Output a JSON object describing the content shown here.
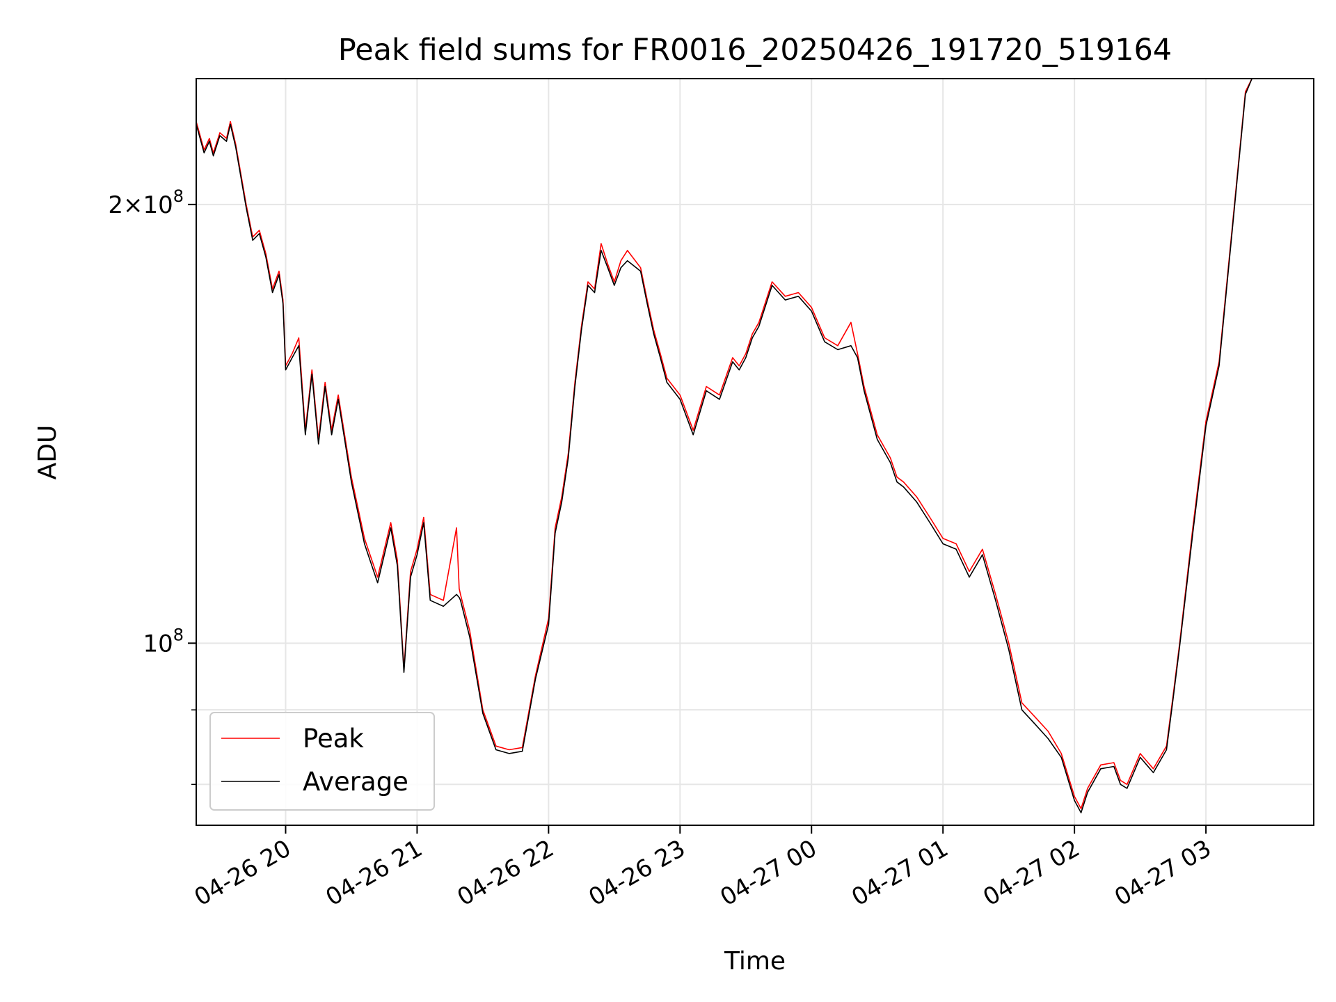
{
  "chart_data": {
    "type": "line",
    "title": "Peak field sums for FR0016_20250426_191720_519164",
    "xlabel": "Time",
    "ylabel": "ADU",
    "yscale": "log",
    "ylim": [
      75000000,
      244000000
    ],
    "x_tick_labels": [
      "04-26 20",
      "04-26 21",
      "04-26 22",
      "04-26 23",
      "04-27 00",
      "04-27 01",
      "04-27 02",
      "04-27 03"
    ],
    "y_tick_labels": [
      {
        "value": 200000000,
        "base": "2×10",
        "exp": "8"
      },
      {
        "value": 100000000,
        "base": "10",
        "exp": "8"
      }
    ],
    "y_minor_ticks": [
      80000000,
      90000000
    ],
    "grid": true,
    "legend_position": "lower left",
    "x_unit": "hours since 04-26 20:00",
    "xlim": [
      -0.68,
      7.82
    ],
    "series": [
      {
        "name": "Peak",
        "color": "#ff0000",
        "x": [
          -0.68,
          -0.62,
          -0.58,
          -0.55,
          -0.5,
          -0.45,
          -0.42,
          -0.38,
          -0.3,
          -0.25,
          -0.2,
          -0.15,
          -0.1,
          -0.05,
          -0.02,
          0.0,
          0.05,
          0.1,
          0.15,
          0.2,
          0.25,
          0.3,
          0.35,
          0.4,
          0.5,
          0.6,
          0.7,
          0.8,
          0.85,
          0.9,
          0.95,
          1.0,
          1.05,
          1.1,
          1.2,
          1.3,
          1.32,
          1.33,
          1.4,
          1.5,
          1.6,
          1.7,
          1.8,
          1.9,
          2.0,
          2.05,
          2.1,
          2.15,
          2.2,
          2.25,
          2.3,
          2.35,
          2.4,
          2.45,
          2.5,
          2.55,
          2.6,
          2.7,
          2.75,
          2.8,
          2.85,
          2.9,
          3.0,
          3.1,
          3.2,
          3.3,
          3.4,
          3.45,
          3.5,
          3.55,
          3.6,
          3.7,
          3.8,
          3.9,
          4.0,
          4.1,
          4.2,
          4.3,
          4.35,
          4.4,
          4.5,
          4.6,
          4.65,
          4.7,
          4.8,
          4.9,
          5.0,
          5.1,
          5.2,
          5.3,
          5.4,
          5.5,
          5.6,
          5.7,
          5.8,
          5.9,
          6.0,
          6.05,
          6.1,
          6.2,
          6.3,
          6.35,
          6.4,
          6.5,
          6.6,
          6.7,
          6.75,
          6.8,
          6.9,
          7.0,
          7.1,
          7.2,
          7.3,
          7.35,
          7.4,
          7.45,
          7.5,
          7.55,
          7.6
        ],
        "y": [
          228000000,
          218000000,
          222000000,
          217000000,
          224000000,
          222000000,
          228000000,
          220000000,
          200000000,
          190000000,
          192000000,
          185000000,
          175000000,
          180000000,
          172000000,
          155000000,
          158000000,
          162000000,
          140000000,
          154000000,
          138000000,
          151000000,
          140000000,
          148000000,
          130000000,
          118000000,
          111000000,
          121000000,
          114000000,
          96000000,
          112000000,
          116000000,
          122000000,
          108000000,
          107000000,
          120000000,
          109000000,
          108000000,
          102000000,
          90000000,
          85000000,
          84500000,
          84800000,
          95000000,
          104000000,
          120000000,
          126000000,
          135000000,
          151000000,
          165000000,
          177000000,
          175000000,
          188000000,
          182000000,
          177000000,
          183000000,
          186000000,
          181000000,
          172000000,
          164000000,
          158000000,
          152000000,
          148000000,
          140000000,
          150000000,
          148000000,
          157000000,
          155000000,
          158000000,
          163000000,
          166000000,
          177000000,
          173000000,
          174000000,
          170000000,
          162000000,
          160000000,
          166000000,
          158000000,
          150000000,
          139000000,
          134000000,
          130000000,
          129000000,
          126000000,
          122000000,
          118000000,
          117000000,
          112000000,
          116000000,
          108000000,
          100000000,
          91000000,
          89000000,
          87000000,
          84000000,
          78500000,
          77000000,
          79500000,
          82500000,
          82800000,
          80500000,
          80000000,
          84000000,
          82000000,
          85000000,
          92000000,
          100000000,
          120000000,
          142000000,
          156000000,
          193000000,
          239000000,
          244000000,
          244000000,
          244000000,
          244000000,
          244000000,
          244000000
        ]
      },
      {
        "name": "Average",
        "color": "#000000",
        "x": [
          -0.68,
          -0.62,
          -0.58,
          -0.55,
          -0.5,
          -0.45,
          -0.42,
          -0.38,
          -0.3,
          -0.25,
          -0.2,
          -0.15,
          -0.1,
          -0.05,
          -0.02,
          0.0,
          0.05,
          0.1,
          0.15,
          0.2,
          0.25,
          0.3,
          0.35,
          0.4,
          0.5,
          0.6,
          0.7,
          0.8,
          0.85,
          0.9,
          0.95,
          1.0,
          1.05,
          1.1,
          1.2,
          1.3,
          1.32,
          1.33,
          1.4,
          1.5,
          1.6,
          1.7,
          1.8,
          1.9,
          2.0,
          2.05,
          2.1,
          2.15,
          2.2,
          2.25,
          2.3,
          2.35,
          2.4,
          2.45,
          2.5,
          2.55,
          2.6,
          2.7,
          2.75,
          2.8,
          2.85,
          2.9,
          3.0,
          3.1,
          3.2,
          3.3,
          3.4,
          3.45,
          3.5,
          3.55,
          3.6,
          3.7,
          3.8,
          3.9,
          4.0,
          4.1,
          4.2,
          4.3,
          4.35,
          4.4,
          4.5,
          4.6,
          4.65,
          4.7,
          4.8,
          4.9,
          5.0,
          5.1,
          5.2,
          5.3,
          5.4,
          5.5,
          5.6,
          5.7,
          5.8,
          5.9,
          6.0,
          6.05,
          6.1,
          6.2,
          6.3,
          6.35,
          6.4,
          6.5,
          6.6,
          6.7,
          6.75,
          6.8,
          6.9,
          7.0,
          7.1,
          7.2,
          7.3,
          7.35,
          7.4,
          7.45,
          7.5,
          7.55,
          7.6
        ],
        "y": [
          227000000,
          217000000,
          221000000,
          216000000,
          223000000,
          221000000,
          227000000,
          219000000,
          199000000,
          189000000,
          191000000,
          184000000,
          174000000,
          179000000,
          171000000,
          154000000,
          157000000,
          160000000,
          139000000,
          153000000,
          137000000,
          150000000,
          139000000,
          147000000,
          129000000,
          117000000,
          110000000,
          120000000,
          113000000,
          95500000,
          111000000,
          115000000,
          121000000,
          107000000,
          106000000,
          108000000,
          107500000,
          107000000,
          101000000,
          89500000,
          84500000,
          84000000,
          84300000,
          94500000,
          103000000,
          119000000,
          125000000,
          134000000,
          150000000,
          164000000,
          176000000,
          174000000,
          186000000,
          181000000,
          176000000,
          181000000,
          183000000,
          180000000,
          171000000,
          163000000,
          157000000,
          151000000,
          147000000,
          139000000,
          149000000,
          147000000,
          156000000,
          154000000,
          157000000,
          162000000,
          165000000,
          176000000,
          172000000,
          173000000,
          169000000,
          161000000,
          159000000,
          160000000,
          157000000,
          149000000,
          138000000,
          133000000,
          129000000,
          128000000,
          125000000,
          121000000,
          117000000,
          116000000,
          111000000,
          115000000,
          107000000,
          99000000,
          90000000,
          88000000,
          86000000,
          83500000,
          78000000,
          76500000,
          79000000,
          82000000,
          82300000,
          80000000,
          79500000,
          83500000,
          81500000,
          84500000,
          91500000,
          99500000,
          119000000,
          141000000,
          155000000,
          192000000,
          238000000,
          244000000,
          244000000,
          244000000,
          244000000,
          244000000,
          244000000
        ]
      }
    ]
  }
}
